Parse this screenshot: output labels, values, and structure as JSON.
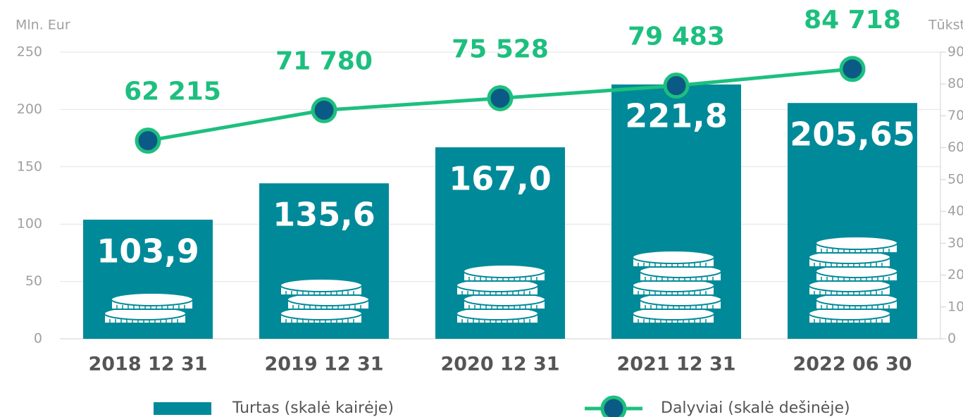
{
  "chart_data": {
    "type": "bar-line",
    "ylabel": "Mln. Eur",
    "y2label": "Tūkst",
    "categories": [
      "2018 12 31",
      "2019 12 31",
      "2020 12 31",
      "2021 12 31",
      "2022 06 30"
    ],
    "series": [
      {
        "name": "Turtas (skalė kairėje)",
        "type": "bar",
        "color": "#008a99",
        "values": [
          103.9,
          135.6,
          167.0,
          221.8,
          205.65
        ],
        "value_labels": [
          "103,9",
          "135,6",
          "167,0",
          "221,8",
          "205,65"
        ]
      },
      {
        "name": "Dalyviai (skalė dešinėje)",
        "type": "line",
        "axis": "y2",
        "color": "#1dbf7e",
        "marker_color": "#0b5a86",
        "values": [
          62.215,
          71.78,
          75.528,
          79.483,
          84.718
        ],
        "value_labels": [
          "62 215",
          "71 780",
          "75 528",
          "79 483",
          "84 718"
        ]
      }
    ],
    "ylim": [
      0,
      250
    ],
    "yticks": [
      0,
      50,
      100,
      150,
      200,
      250
    ],
    "y2lim": [
      0,
      90
    ],
    "y2ticks": [
      0,
      10,
      20,
      30,
      40,
      50,
      60,
      70,
      80,
      90
    ],
    "grid": true,
    "legend": "bottom"
  }
}
